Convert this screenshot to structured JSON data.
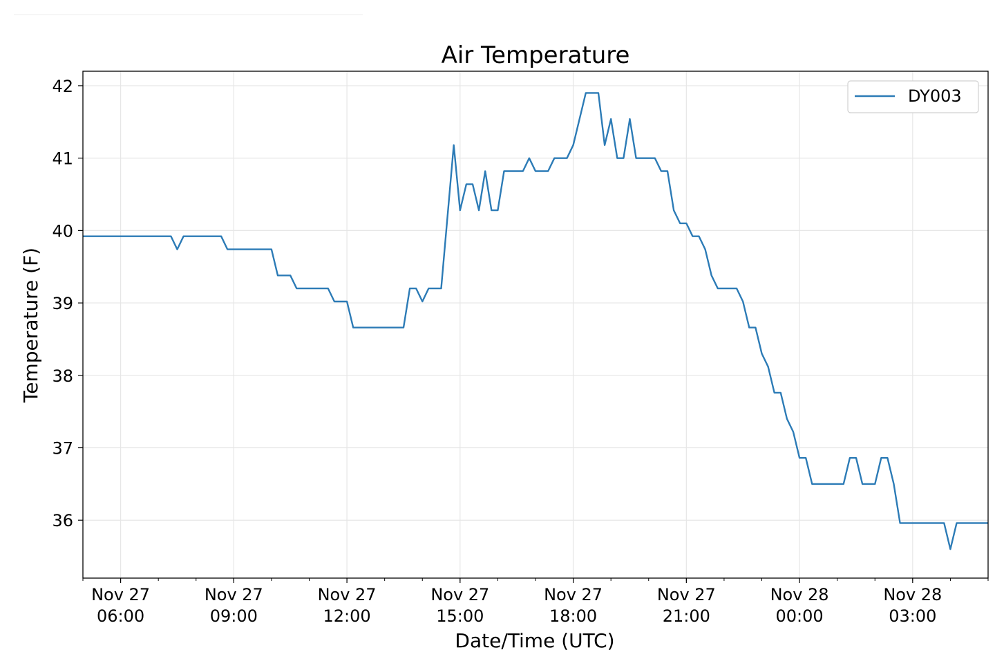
{
  "chart_data": {
    "type": "line",
    "title": "Air Temperature",
    "xlabel": "Date/Time (UTC)",
    "ylabel": "Temperature (F)",
    "x_ticks": [
      {
        "t": "2023-11-27T06:00",
        "line1": "Nov 27",
        "line2": "06:00"
      },
      {
        "t": "2023-11-27T09:00",
        "line1": "Nov 27",
        "line2": "09:00"
      },
      {
        "t": "2023-11-27T12:00",
        "line1": "Nov 27",
        "line2": "12:00"
      },
      {
        "t": "2023-11-27T15:00",
        "line1": "Nov 27",
        "line2": "15:00"
      },
      {
        "t": "2023-11-27T18:00",
        "line1": "Nov 27",
        "line2": "18:00"
      },
      {
        "t": "2023-11-27T21:00",
        "line1": "Nov 27",
        "line2": "21:00"
      },
      {
        "t": "2023-11-28T00:00",
        "line1": "Nov 28",
        "line2": "00:00"
      },
      {
        "t": "2023-11-28T03:00",
        "line1": "Nov 28",
        "line2": "03:00"
      }
    ],
    "y_ticks": [
      36,
      37,
      38,
      39,
      40,
      41,
      42
    ],
    "xlim": [
      "2023-11-27T05:00",
      "2023-11-28T05:00"
    ],
    "ylim": [
      35.2,
      42.2
    ],
    "grid": true,
    "legend_position": "top-right",
    "series": [
      {
        "name": "DY003",
        "color": "#2c7bb6",
        "points": [
          [
            "2023-11-27T05:00",
            39.92
          ],
          [
            "2023-11-27T07:20",
            39.92
          ],
          [
            "2023-11-27T07:30",
            39.74
          ],
          [
            "2023-11-27T07:40",
            39.92
          ],
          [
            "2023-11-27T08:40",
            39.92
          ],
          [
            "2023-11-27T08:50",
            39.74
          ],
          [
            "2023-11-27T10:00",
            39.74
          ],
          [
            "2023-11-27T10:10",
            39.38
          ],
          [
            "2023-11-27T10:30",
            39.38
          ],
          [
            "2023-11-27T10:40",
            39.2
          ],
          [
            "2023-11-27T11:30",
            39.2
          ],
          [
            "2023-11-27T11:40",
            39.02
          ],
          [
            "2023-11-27T12:00",
            39.02
          ],
          [
            "2023-11-27T12:10",
            38.66
          ],
          [
            "2023-11-27T13:30",
            38.66
          ],
          [
            "2023-11-27T13:40",
            39.2
          ],
          [
            "2023-11-27T13:50",
            39.2
          ],
          [
            "2023-11-27T14:00",
            39.02
          ],
          [
            "2023-11-27T14:10",
            39.2
          ],
          [
            "2023-11-27T14:30",
            39.2
          ],
          [
            "2023-11-27T14:50",
            41.18
          ],
          [
            "2023-11-27T15:00",
            40.28
          ],
          [
            "2023-11-27T15:10",
            40.64
          ],
          [
            "2023-11-27T15:20",
            40.64
          ],
          [
            "2023-11-27T15:30",
            40.28
          ],
          [
            "2023-11-27T15:40",
            40.82
          ],
          [
            "2023-11-27T15:50",
            40.28
          ],
          [
            "2023-11-27T16:00",
            40.28
          ],
          [
            "2023-11-27T16:10",
            40.82
          ],
          [
            "2023-11-27T16:40",
            40.82
          ],
          [
            "2023-11-27T16:50",
            41.0
          ],
          [
            "2023-11-27T17:00",
            40.82
          ],
          [
            "2023-11-27T17:20",
            40.82
          ],
          [
            "2023-11-27T17:30",
            41.0
          ],
          [
            "2023-11-27T17:50",
            41.0
          ],
          [
            "2023-11-27T18:00",
            41.18
          ],
          [
            "2023-11-27T18:10",
            41.54
          ],
          [
            "2023-11-27T18:20",
            41.9
          ],
          [
            "2023-11-27T18:40",
            41.9
          ],
          [
            "2023-11-27T18:50",
            41.18
          ],
          [
            "2023-11-27T19:00",
            41.54
          ],
          [
            "2023-11-27T19:10",
            41.0
          ],
          [
            "2023-11-27T19:20",
            41.0
          ],
          [
            "2023-11-27T19:30",
            41.54
          ],
          [
            "2023-11-27T19:40",
            41.0
          ],
          [
            "2023-11-27T20:10",
            41.0
          ],
          [
            "2023-11-27T20:20",
            40.82
          ],
          [
            "2023-11-27T20:30",
            40.82
          ],
          [
            "2023-11-27T20:40",
            40.28
          ],
          [
            "2023-11-27T20:50",
            40.1
          ],
          [
            "2023-11-27T21:00",
            40.1
          ],
          [
            "2023-11-27T21:10",
            39.92
          ],
          [
            "2023-11-27T21:20",
            39.92
          ],
          [
            "2023-11-27T21:30",
            39.74
          ],
          [
            "2023-11-27T21:40",
            39.38
          ],
          [
            "2023-11-27T21:50",
            39.2
          ],
          [
            "2023-11-27T22:20",
            39.2
          ],
          [
            "2023-11-27T22:30",
            39.02
          ],
          [
            "2023-11-27T22:40",
            38.66
          ],
          [
            "2023-11-27T22:50",
            38.66
          ],
          [
            "2023-11-27T23:00",
            38.3
          ],
          [
            "2023-11-27T23:10",
            38.12
          ],
          [
            "2023-11-27T23:20",
            37.76
          ],
          [
            "2023-11-27T23:30",
            37.76
          ],
          [
            "2023-11-27T23:40",
            37.4
          ],
          [
            "2023-11-27T23:50",
            37.22
          ],
          [
            "2023-11-28T00:00",
            36.86
          ],
          [
            "2023-11-28T00:10",
            36.86
          ],
          [
            "2023-11-28T00:20",
            36.5
          ],
          [
            "2023-11-28T01:10",
            36.5
          ],
          [
            "2023-11-28T01:20",
            36.86
          ],
          [
            "2023-11-28T01:30",
            36.86
          ],
          [
            "2023-11-28T01:40",
            36.5
          ],
          [
            "2023-11-28T02:00",
            36.5
          ],
          [
            "2023-11-28T02:10",
            36.86
          ],
          [
            "2023-11-28T02:20",
            36.86
          ],
          [
            "2023-11-28T02:30",
            36.5
          ],
          [
            "2023-11-28T02:40",
            35.96
          ],
          [
            "2023-11-28T03:50",
            35.96
          ],
          [
            "2023-11-28T04:00",
            35.6
          ],
          [
            "2023-11-28T04:10",
            35.96
          ],
          [
            "2023-11-28T05:00",
            35.96
          ]
        ]
      }
    ]
  }
}
